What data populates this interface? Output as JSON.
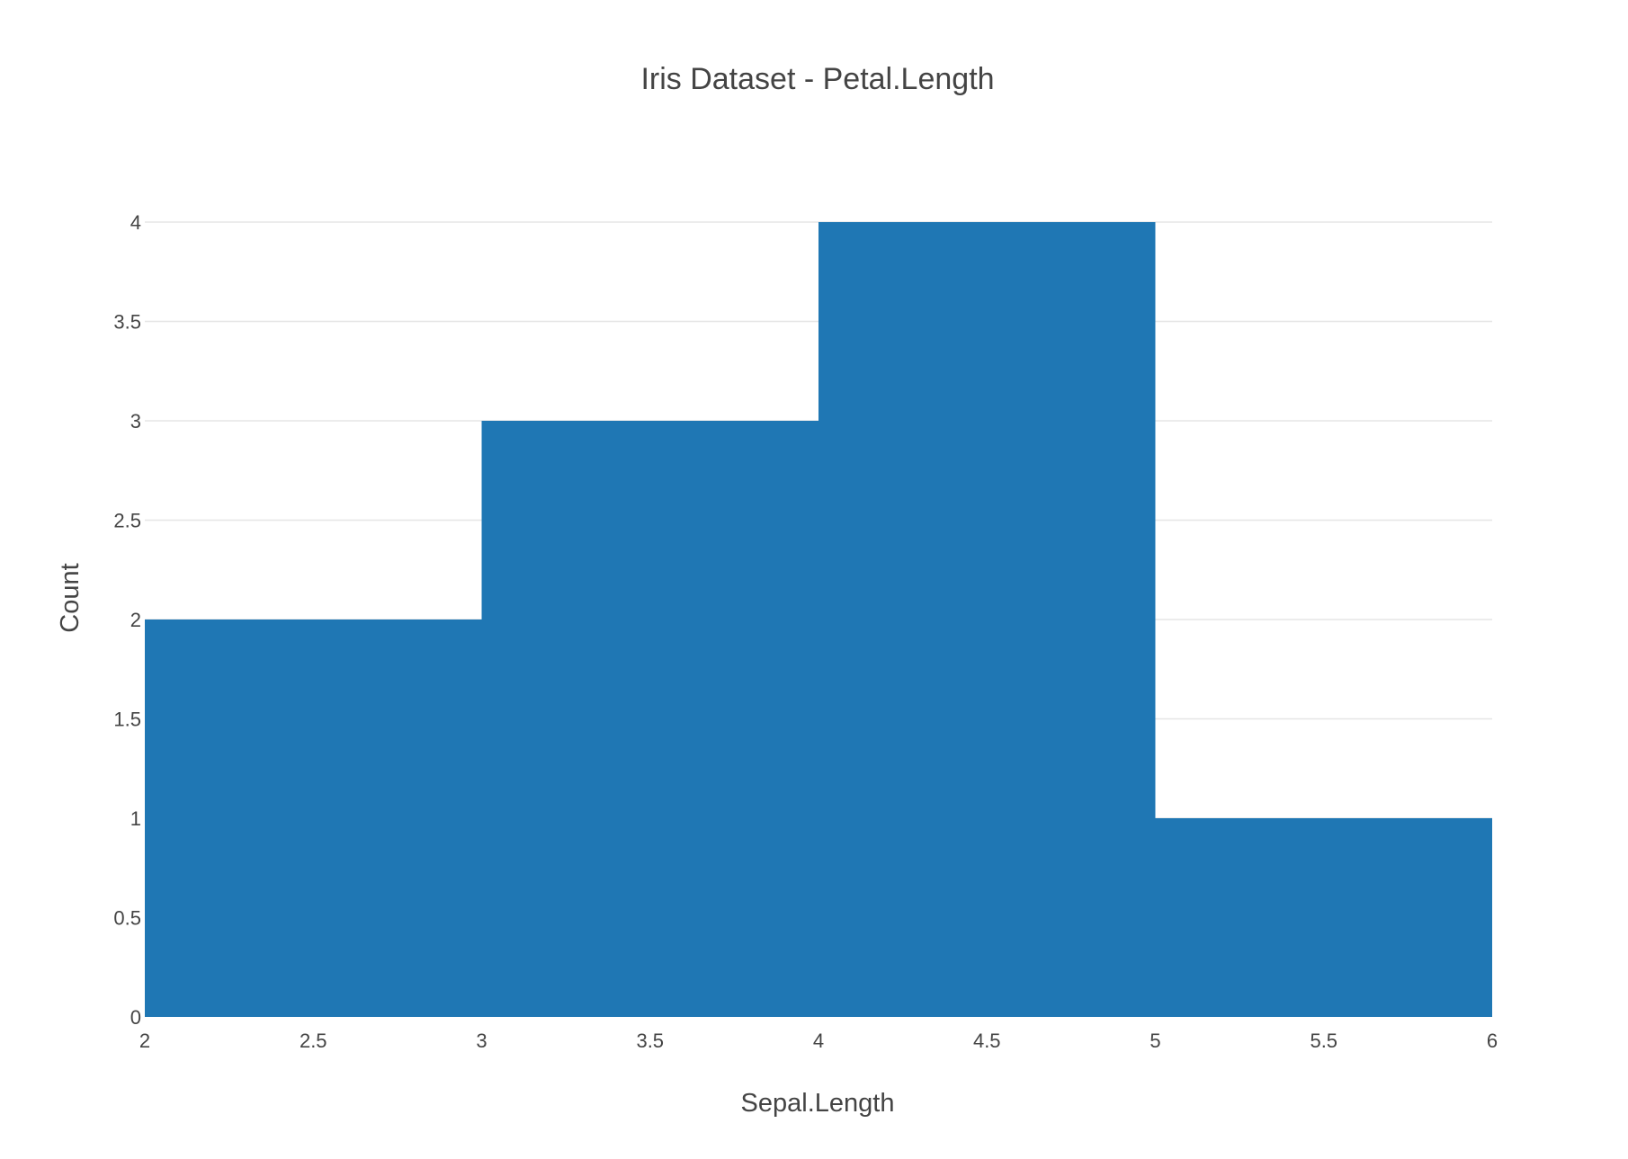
{
  "chart_data": {
    "type": "bar",
    "title": "Iris Dataset - Petal.Length",
    "xlabel": "Sepal.Length",
    "ylabel": "Count",
    "bins": [
      {
        "start": 2,
        "end": 3,
        "value": 2
      },
      {
        "start": 3,
        "end": 4,
        "value": 3
      },
      {
        "start": 4,
        "end": 5,
        "value": 4
      },
      {
        "start": 5,
        "end": 6,
        "value": 1
      }
    ],
    "xlim": [
      2,
      6
    ],
    "ylim": [
      0,
      4
    ],
    "xticks": [
      "2",
      "2.5",
      "3",
      "3.5",
      "4",
      "4.5",
      "5",
      "5.5",
      "6"
    ],
    "yticks": [
      "0",
      "0.5",
      "1",
      "1.5",
      "2",
      "2.5",
      "3",
      "3.5",
      "4"
    ],
    "grid": "horizontal",
    "colors": {
      "bar": "#1f77b4",
      "grid": "#e6e6e6",
      "text": "#444444"
    }
  }
}
